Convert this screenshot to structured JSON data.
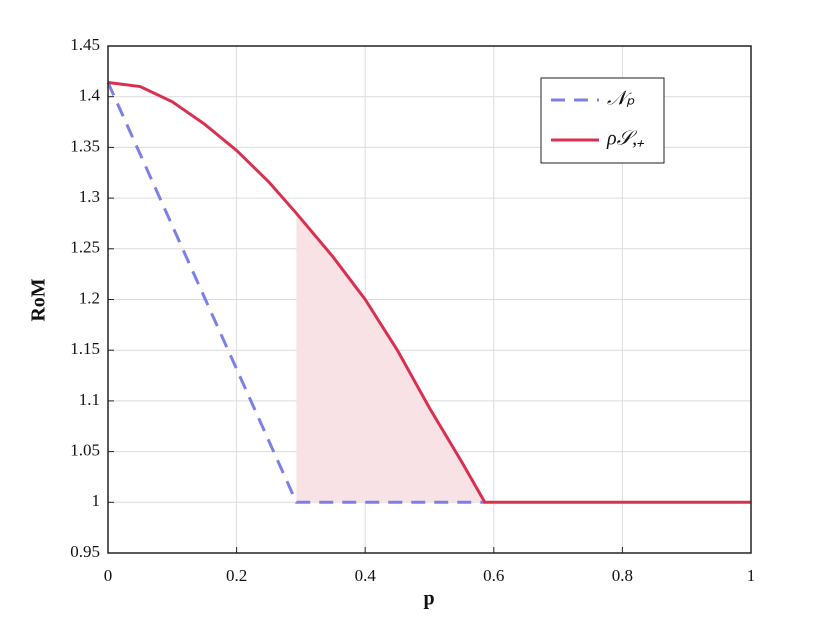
{
  "chart_data": {
    "type": "line",
    "xlabel": "p",
    "ylabel": "RoM",
    "xlim": [
      0,
      1
    ],
    "xticks": [
      0,
      0.2,
      0.4,
      0.6,
      0.8,
      1
    ],
    "ylim": [
      0.95,
      1.45
    ],
    "yticks": [
      0.95,
      1,
      1.05,
      1.1,
      1.15,
      1.2,
      1.25,
      1.3,
      1.35,
      1.4,
      1.45
    ],
    "grid": true,
    "legend": "upper right",
    "shade_color": "#f8e2e5",
    "series": [
      {
        "name": "𝒩ₚ",
        "color": "#7c80e6",
        "dashed": true,
        "x": [
          0,
          0.293,
          0.586
        ],
        "values": [
          1.414,
          1,
          1
        ]
      },
      {
        "name": "ρ𝒮,₊",
        "color": "#d9304f",
        "dashed": false,
        "x": [
          0,
          0.05,
          0.1,
          0.15,
          0.2,
          0.25,
          0.293,
          0.35,
          0.4,
          0.45,
          0.5,
          0.55,
          0.586,
          0.6,
          0.8,
          1
        ],
        "values": [
          1.414,
          1.41,
          1.395,
          1.373,
          1.347,
          1.316,
          1.285,
          1.242,
          1.2,
          1.15,
          1.093,
          1.04,
          1,
          1,
          1,
          1
        ]
      }
    ]
  }
}
